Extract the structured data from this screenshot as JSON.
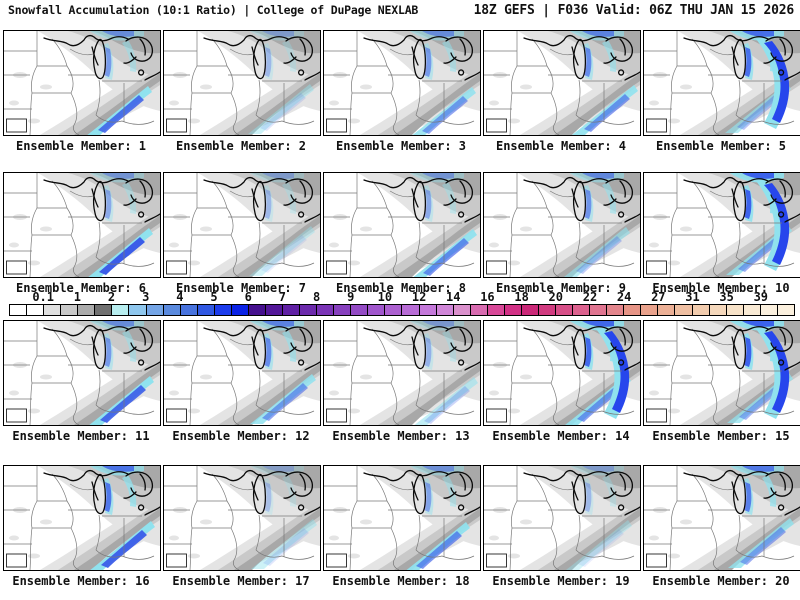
{
  "header": {
    "left": "Snowfall Accumulation (10:1 Ratio) | College of DuPage NEXLAB",
    "right": "18Z GEFS | F036 Valid: 06Z THU JAN 15 2026"
  },
  "colorbar": {
    "ticks": [
      "0.1",
      "1",
      "2",
      "3",
      "4",
      "5",
      "6",
      "7",
      "8",
      "9",
      "10",
      "12",
      "14",
      "16",
      "18",
      "20",
      "22",
      "24",
      "27",
      "31",
      "35",
      "39"
    ],
    "cells": [
      "#ffffff",
      "#ffffff",
      "#e0e0e0",
      "#c9c9c9",
      "#ababab",
      "#707070",
      "#b8eef0",
      "#8fc7ee",
      "#74a5e6",
      "#5a8ade",
      "#4873de",
      "#3058e2",
      "#1c3cec",
      "#0a22e6",
      "#45108e",
      "#531799",
      "#6020a4",
      "#6c2aac",
      "#7a34b6",
      "#8740be",
      "#934ac4",
      "#a056cc",
      "#ac60d0",
      "#b86cd6",
      "#c478da",
      "#d086d8",
      "#da90cc",
      "#d86bb0",
      "#d84898",
      "#d23186",
      "#cb2878",
      "#d13b80",
      "#d74f88",
      "#dc618e",
      "#e07490",
      "#e3858c",
      "#e69486",
      "#e9a28c",
      "#ecb096",
      "#efbfa2",
      "#f2ccae",
      "#f5d8bc",
      "#f7e2c8",
      "#f9ead4",
      "#fbf0de",
      "#fbf0de"
    ]
  },
  "map_colors": {
    "snow_light": "#e4e4e4",
    "snow_medium": "#c9c9c9",
    "snow_dark": "#a8a8a8",
    "snow_cyan": "#90e2ee",
    "snow_blue": "#3b5de8",
    "state_border": "#787878",
    "lake_outline": "#0a0a0a"
  },
  "panels": [
    {
      "member": 1,
      "label": "Ensemble Member: 1",
      "band_blue": 0.85,
      "lake_blue": 0.5,
      "east_blue": false
    },
    {
      "member": 2,
      "label": "Ensemble Member: 2",
      "band_blue": 0.15,
      "lake_blue": 0.3,
      "east_blue": false
    },
    {
      "member": 3,
      "label": "Ensemble Member: 3",
      "band_blue": 0.55,
      "lake_blue": 0.5,
      "east_blue": false
    },
    {
      "member": 4,
      "label": "Ensemble Member: 4",
      "band_blue": 0.6,
      "lake_blue": 0.6,
      "east_blue": false
    },
    {
      "member": 5,
      "label": "Ensemble Member: 5",
      "band_blue": 0.35,
      "lake_blue": 0.8,
      "east_blue": true
    },
    {
      "member": 6,
      "label": "Ensemble Member: 6",
      "band_blue": 1,
      "lake_blue": 0.4,
      "east_blue": false
    },
    {
      "member": 7,
      "label": "Ensemble Member: 7",
      "band_blue": 0.1,
      "lake_blue": 0.3,
      "east_blue": false
    },
    {
      "member": 8,
      "label": "Ensemble Member: 8",
      "band_blue": 0.65,
      "lake_blue": 0.4,
      "east_blue": false
    },
    {
      "member": 9,
      "label": "Ensemble Member: 9",
      "band_blue": 0.3,
      "lake_blue": 0.55,
      "east_blue": false
    },
    {
      "member": 10,
      "label": "Ensemble Member: 10",
      "band_blue": 0.5,
      "lake_blue": 0.9,
      "east_blue": true
    },
    {
      "member": 11,
      "label": "Ensemble Member: 11",
      "band_blue": 0.9,
      "lake_blue": 0.5,
      "east_blue": false
    },
    {
      "member": 12,
      "label": "Ensemble Member: 12",
      "band_blue": 0.55,
      "lake_blue": 0.6,
      "east_blue": false
    },
    {
      "member": 13,
      "label": "Ensemble Member: 13",
      "band_blue": 0.25,
      "lake_blue": 0.35,
      "east_blue": false
    },
    {
      "member": 14,
      "label": "Ensemble Member: 14",
      "band_blue": 0.6,
      "lake_blue": 0.85,
      "east_blue": true
    },
    {
      "member": 15,
      "label": "Ensemble Member: 15",
      "band_blue": 0.45,
      "lake_blue": 0.9,
      "east_blue": true
    },
    {
      "member": 16,
      "label": "Ensemble Member: 16",
      "band_blue": 0.95,
      "lake_blue": 0.75,
      "east_blue": false
    },
    {
      "member": 17,
      "label": "Ensemble Member: 17",
      "band_blue": 0.15,
      "lake_blue": 0.25,
      "east_blue": false
    },
    {
      "member": 18,
      "label": "Ensemble Member: 18",
      "band_blue": 0.65,
      "lake_blue": 0.45,
      "east_blue": false
    },
    {
      "member": 19,
      "label": "Ensemble Member: 19",
      "band_blue": 0.1,
      "lake_blue": 0.3,
      "east_blue": false
    },
    {
      "member": 20,
      "label": "Ensemble Member: 20",
      "band_blue": 0.5,
      "lake_blue": 0.7,
      "east_blue": false
    }
  ]
}
